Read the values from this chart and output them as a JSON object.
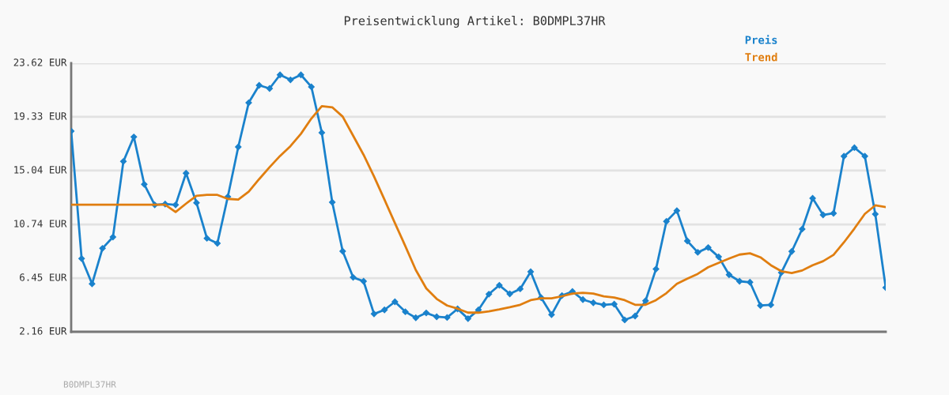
{
  "chart_data": {
    "type": "line",
    "title": "Preisentwicklung Artikel: B0DMPL37HR",
    "categories": [
      null,
      null,
      null,
      null,
      null,
      null,
      null,
      null,
      null,
      null,
      null,
      null,
      null,
      null,
      null,
      null,
      null,
      null,
      null,
      null,
      null,
      null,
      null,
      null,
      null,
      null,
      null,
      null,
      null,
      null,
      null,
      null,
      null,
      null,
      null,
      null,
      null,
      null,
      null,
      null,
      null,
      null,
      null,
      null,
      null,
      null,
      null,
      null,
      null,
      null,
      null,
      null,
      null,
      null,
      null,
      null,
      null,
      null,
      null,
      null,
      null,
      null,
      null,
      null,
      null,
      null,
      null,
      null,
      null,
      null,
      null,
      null,
      null,
      null,
      null,
      null,
      null,
      null,
      null
    ],
    "series": [
      {
        "name": "Preis",
        "color": "#1a82cc",
        "marker": "diamond",
        "values": [
          18.19,
          8.01,
          5.99,
          8.83,
          9.73,
          15.77,
          17.73,
          13.94,
          12.3,
          12.37,
          12.3,
          14.83,
          12.47,
          9.63,
          9.23,
          12.95,
          16.93,
          20.46,
          21.85,
          21.6,
          22.69,
          22.29,
          22.69,
          21.73,
          18.07,
          12.51,
          8.6,
          6.51,
          6.2,
          3.59,
          3.91,
          4.56,
          3.76,
          3.28,
          3.67,
          3.36,
          3.3,
          3.99,
          3.21,
          3.91,
          5.17,
          5.88,
          5.19,
          5.59,
          6.96,
          4.89,
          3.53,
          5.06,
          5.38,
          4.73,
          4.48,
          4.31,
          4.37,
          3.11,
          3.42,
          4.64,
          7.17,
          10.98,
          11.84,
          9.42,
          8.51,
          8.89,
          8.15,
          6.72,
          6.2,
          6.12,
          4.26,
          4.31,
          6.89,
          8.58,
          10.37,
          12.83,
          11.5,
          11.63,
          16.19,
          16.87,
          16.19,
          11.56,
          5.69
        ]
      },
      {
        "name": "Trend",
        "color": "#e07e10",
        "marker": "none",
        "values": [
          12.32,
          12.32,
          12.32,
          12.32,
          12.32,
          12.32,
          12.32,
          12.32,
          12.32,
          12.32,
          11.73,
          12.4,
          13.03,
          13.1,
          13.1,
          12.78,
          12.72,
          13.35,
          14.36,
          15.31,
          16.21,
          17.0,
          17.98,
          19.2,
          20.19,
          20.1,
          19.35,
          17.83,
          16.3,
          14.57,
          12.72,
          10.85,
          9.0,
          7.1,
          5.63,
          4.79,
          4.26,
          4.01,
          3.69,
          3.69,
          3.8,
          3.95,
          4.12,
          4.32,
          4.69,
          4.83,
          4.83,
          5.0,
          5.21,
          5.27,
          5.21,
          4.99,
          4.9,
          4.69,
          4.32,
          4.32,
          4.69,
          5.25,
          5.99,
          6.41,
          6.79,
          7.32,
          7.67,
          8.01,
          8.33,
          8.43,
          8.11,
          7.48,
          7.0,
          6.85,
          7.06,
          7.48,
          7.8,
          8.31,
          9.31,
          10.41,
          11.58,
          12.26,
          12.13
        ]
      }
    ],
    "ylim": [
      2.16,
      23.62
    ],
    "yticks": [
      {
        "value": 2.16,
        "label": "2.16 EUR"
      },
      {
        "value": 6.45,
        "label": "6.45 EUR"
      },
      {
        "value": 10.74,
        "label": "10.74 EUR"
      },
      {
        "value": 15.04,
        "label": "15.04 EUR"
      },
      {
        "value": 19.33,
        "label": "19.33 EUR"
      },
      {
        "value": 23.62,
        "label": "23.62 EUR"
      }
    ],
    "tick_labels": "y",
    "grid": "y",
    "legend": "top right",
    "line_style": "solid",
    "annotations": [
      "B0DMPL37HR"
    ]
  }
}
